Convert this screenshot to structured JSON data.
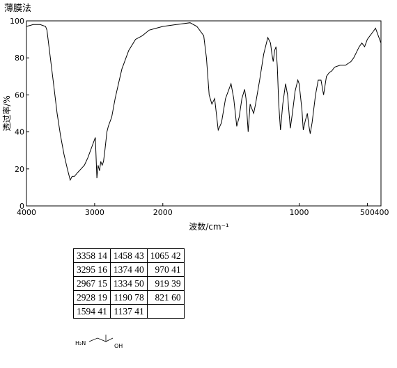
{
  "title": "薄膜法",
  "chart_data": {
    "type": "line",
    "color": "#000000",
    "xlabel": "波数/cm⁻¹",
    "ylabel": "透过率/%",
    "xlim": [
      4000,
      400
    ],
    "ylim": [
      0,
      100
    ],
    "xticks": [
      4000,
      3000,
      2000,
      1000,
      500,
      400
    ],
    "yticks": [
      0,
      20,
      40,
      60,
      80,
      100
    ],
    "x_scale_break": 2000,
    "x_scale_factor": 2,
    "x": [
      4000,
      3900,
      3800,
      3720,
      3700,
      3650,
      3600,
      3550,
      3500,
      3450,
      3400,
      3358,
      3330,
      3295,
      3250,
      3200,
      3150,
      3100,
      3050,
      3000,
      2990,
      2967,
      2950,
      2928,
      2910,
      2890,
      2870,
      2850,
      2820,
      2800,
      2750,
      2700,
      2650,
      2600,
      2500,
      2400,
      2300,
      2200,
      2100,
      2000,
      1900,
      1800,
      1750,
      1700,
      1680,
      1660,
      1640,
      1620,
      1600,
      1594,
      1570,
      1540,
      1520,
      1500,
      1480,
      1458,
      1440,
      1420,
      1400,
      1390,
      1374,
      1360,
      1334,
      1320,
      1290,
      1260,
      1230,
      1210,
      1200,
      1190,
      1180,
      1170,
      1160,
      1150,
      1137,
      1120,
      1100,
      1085,
      1065,
      1050,
      1030,
      1010,
      1000,
      980,
      970,
      955,
      940,
      930,
      919,
      905,
      880,
      860,
      840,
      821,
      800,
      780,
      760,
      740,
      700,
      660,
      620,
      600,
      580,
      560,
      540,
      520,
      500,
      480,
      460,
      440,
      420,
      400
    ],
    "values": [
      97,
      98,
      98,
      97,
      95,
      80,
      65,
      50,
      38,
      28,
      20,
      14,
      16,
      16,
      18,
      20,
      22,
      26,
      31,
      36,
      37,
      15,
      22,
      19,
      24,
      22,
      24,
      30,
      40,
      43,
      48,
      58,
      66,
      74,
      84,
      90,
      92,
      95,
      96,
      97,
      98,
      99,
      97,
      92,
      80,
      60,
      55,
      58,
      45,
      41,
      45,
      58,
      62,
      66,
      58,
      43,
      48,
      58,
      63,
      58,
      40,
      55,
      50,
      55,
      68,
      82,
      91,
      88,
      82,
      78,
      84,
      86,
      75,
      55,
      41,
      55,
      66,
      60,
      42,
      50,
      62,
      68,
      66,
      52,
      41,
      46,
      50,
      44,
      39,
      45,
      60,
      68,
      68,
      60,
      70,
      72,
      73,
      75,
      76,
      76,
      78,
      80,
      83,
      86,
      88,
      86,
      90,
      92,
      94,
      96,
      92,
      88
    ]
  },
  "peak_table": {
    "rows": [
      [
        "3358 14",
        "1458 43",
        "1065 42"
      ],
      [
        "3295 16",
        "1374 40",
        " 970 41"
      ],
      [
        "2967 15",
        "1334 50",
        " 919 39"
      ],
      [
        "2928 19",
        "1190 78",
        " 821 60"
      ],
      [
        "1594 41",
        "1137 41"
      ]
    ]
  },
  "structure": {
    "left": "H₂N",
    "right": "OH"
  }
}
